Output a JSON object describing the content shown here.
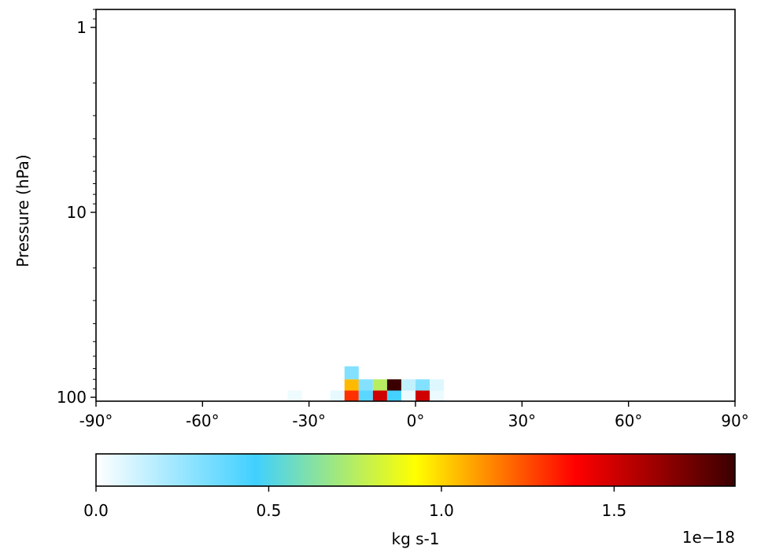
{
  "chart_data": {
    "type": "heatmap",
    "title": "",
    "xlabel": "",
    "ylabel": "Pressure (hPa)",
    "x_axis": {
      "range": [
        -90,
        90
      ],
      "ticks": [
        -90,
        -60,
        -30,
        0,
        30,
        60,
        90
      ],
      "tick_labels": [
        "-90°",
        "-60°",
        "-30°",
        "0°",
        "30°",
        "60°",
        "90°"
      ]
    },
    "y_axis": {
      "scale": "log",
      "inverted": true,
      "range": [
        105,
        0.8
      ],
      "ticks": [
        1,
        10,
        100
      ],
      "tick_labels": [
        "1",
        "10",
        "100"
      ]
    },
    "grid": false,
    "colorbar": {
      "orientation": "horizontal",
      "placement": "bottom",
      "range": [
        0,
        1.85
      ],
      "ticks": [
        0.0,
        0.5,
        1.0,
        1.5
      ],
      "tick_labels": [
        "0.0",
        "0.5",
        "1.0",
        "1.5"
      ],
      "label": "kg s-1",
      "offset_text": "1e−18",
      "colormap": [
        "#ffffff",
        "#40d0ff",
        "#ffff00",
        "#ff0000",
        "#3a0000"
      ]
    },
    "cell_width_deg": 4,
    "cells": [
      {
        "lat": -34,
        "p_top": 92,
        "p_bottom": 105,
        "value": 0.04
      },
      {
        "lat": -22,
        "p_top": 92,
        "p_bottom": 105,
        "value": 0.06
      },
      {
        "lat": -18,
        "p_top": 92,
        "p_bottom": 105,
        "value": 1.3
      },
      {
        "lat": -18,
        "p_top": 80,
        "p_bottom": 92,
        "value": 1.05
      },
      {
        "lat": -18,
        "p_top": 68,
        "p_bottom": 80,
        "value": 0.3
      },
      {
        "lat": -14,
        "p_top": 92,
        "p_bottom": 105,
        "value": 0.4
      },
      {
        "lat": -14,
        "p_top": 80,
        "p_bottom": 92,
        "value": 0.3
      },
      {
        "lat": -10,
        "p_top": 92,
        "p_bottom": 105,
        "value": 1.5
      },
      {
        "lat": -10,
        "p_top": 80,
        "p_bottom": 92,
        "value": 0.75
      },
      {
        "lat": -6,
        "p_top": 92,
        "p_bottom": 105,
        "value": 0.45
      },
      {
        "lat": -6,
        "p_top": 80,
        "p_bottom": 92,
        "value": 1.85
      },
      {
        "lat": -2,
        "p_top": 92,
        "p_bottom": 105,
        "value": 0.05
      },
      {
        "lat": -2,
        "p_top": 80,
        "p_bottom": 92,
        "value": 0.15
      },
      {
        "lat": 2,
        "p_top": 92,
        "p_bottom": 105,
        "value": 1.5
      },
      {
        "lat": 2,
        "p_top": 80,
        "p_bottom": 92,
        "value": 0.3
      },
      {
        "lat": 6,
        "p_top": 92,
        "p_bottom": 105,
        "value": 0.05
      },
      {
        "lat": 6,
        "p_top": 80,
        "p_bottom": 92,
        "value": 0.08
      }
    ]
  }
}
